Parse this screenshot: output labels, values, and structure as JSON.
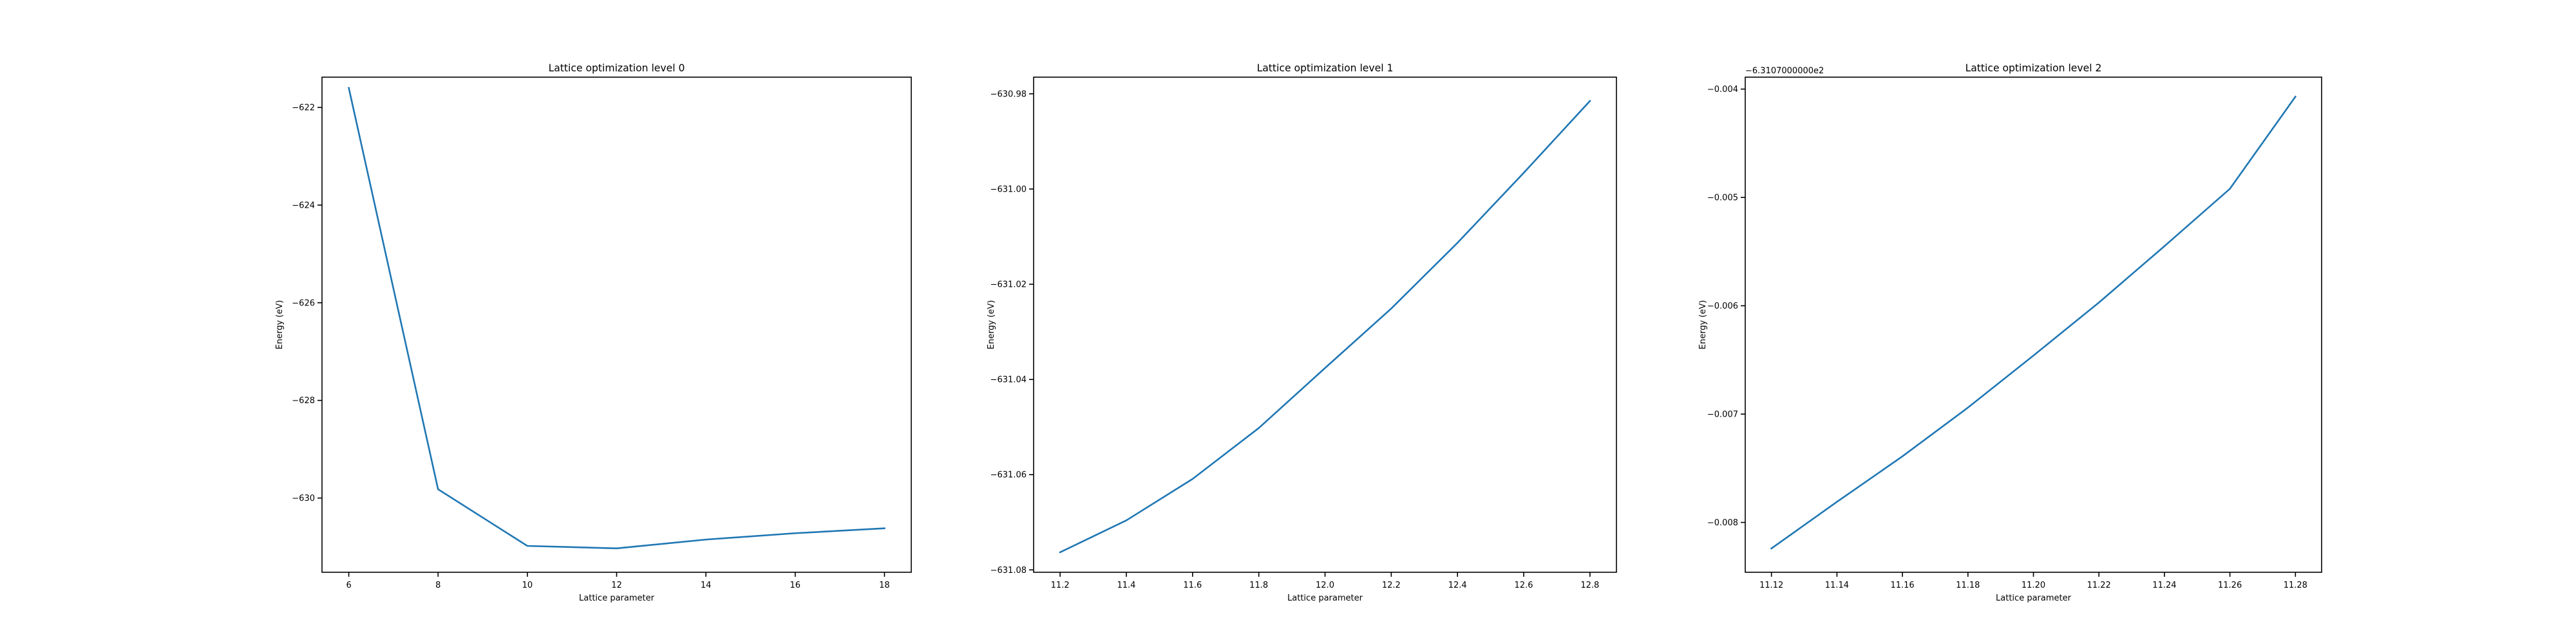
{
  "colors": {
    "series": "#1f77b4",
    "axes": "#000000",
    "background": "#ffffff"
  },
  "chart_data": [
    {
      "type": "line",
      "title": "Lattice optimization level 0",
      "xlabel": "Lattice parameter",
      "ylabel": "Energy (eV)",
      "offset_text": "",
      "xlim": [
        5.4,
        18.6
      ],
      "ylim": [
        -631.52,
        -621.38
      ],
      "xticks": [
        6,
        8,
        10,
        12,
        14,
        16,
        18
      ],
      "xtick_labels": [
        "6",
        "8",
        "10",
        "12",
        "14",
        "16",
        "18"
      ],
      "yticks": [
        -622,
        -624,
        -626,
        -628,
        -630
      ],
      "ytick_labels": [
        "−622",
        "−624",
        "−626",
        "−628",
        "−630"
      ],
      "grid": false,
      "series": [
        {
          "x": [
            6,
            8,
            10,
            12,
            14,
            16,
            18
          ],
          "y": [
            -621.6,
            -629.82,
            -630.98,
            -631.03,
            -630.85,
            -630.72,
            -630.62
          ]
        }
      ]
    },
    {
      "type": "line",
      "title": "Lattice optimization level 1",
      "xlabel": "Lattice parameter",
      "ylabel": "Energy (eV)",
      "offset_text": "",
      "xlim": [
        11.12,
        12.88
      ],
      "ylim": [
        -631.0805,
        -630.9765
      ],
      "xticks": [
        11.2,
        11.4,
        11.6,
        11.8,
        12.0,
        12.2,
        12.4,
        12.6,
        12.8
      ],
      "xtick_labels": [
        "11.2",
        "11.4",
        "11.6",
        "11.8",
        "12.0",
        "12.2",
        "12.4",
        "12.6",
        "12.8"
      ],
      "yticks": [
        -630.98,
        -631.0,
        -631.02,
        -631.04,
        -631.06,
        -631.08
      ],
      "ytick_labels": [
        "−630.98",
        "−631.00",
        "−631.02",
        "−631.04",
        "−631.06",
        "−631.08"
      ],
      "grid": false,
      "series": [
        {
          "x": [
            11.2,
            11.4,
            11.6,
            11.8,
            12.0,
            12.2,
            12.4,
            12.6,
            12.8
          ],
          "y": [
            -631.0763,
            -631.0696,
            -631.0609,
            -631.0502,
            -631.0376,
            -631.0251,
            -631.0113,
            -630.9966,
            -630.9815
          ]
        }
      ]
    },
    {
      "type": "line",
      "title": "Lattice optimization level 2",
      "xlabel": "Lattice parameter",
      "ylabel": "Energy (eV)",
      "offset_text": "−6.3107000000e2",
      "xlim": [
        11.112,
        11.288
      ],
      "ylim": [
        -0.00846,
        -0.00389
      ],
      "xticks": [
        11.12,
        11.14,
        11.16,
        11.18,
        11.2,
        11.22,
        11.24,
        11.26,
        11.28
      ],
      "xtick_labels": [
        "11.12",
        "11.14",
        "11.16",
        "11.18",
        "11.20",
        "11.22",
        "11.24",
        "11.26",
        "11.28"
      ],
      "yticks": [
        -0.004,
        -0.005,
        -0.006,
        -0.007,
        -0.008
      ],
      "ytick_labels": [
        "−0.004",
        "−0.005",
        "−0.006",
        "−0.007",
        "−0.008"
      ],
      "grid": false,
      "series": [
        {
          "x": [
            11.12,
            11.14,
            11.16,
            11.18,
            11.2,
            11.22,
            11.24,
            11.26,
            11.28
          ],
          "y": [
            -0.00824,
            -0.00781,
            -0.00739,
            -0.00694,
            -0.00646,
            -0.00597,
            -0.00545,
            -0.00492,
            -0.00407
          ]
        }
      ]
    }
  ]
}
